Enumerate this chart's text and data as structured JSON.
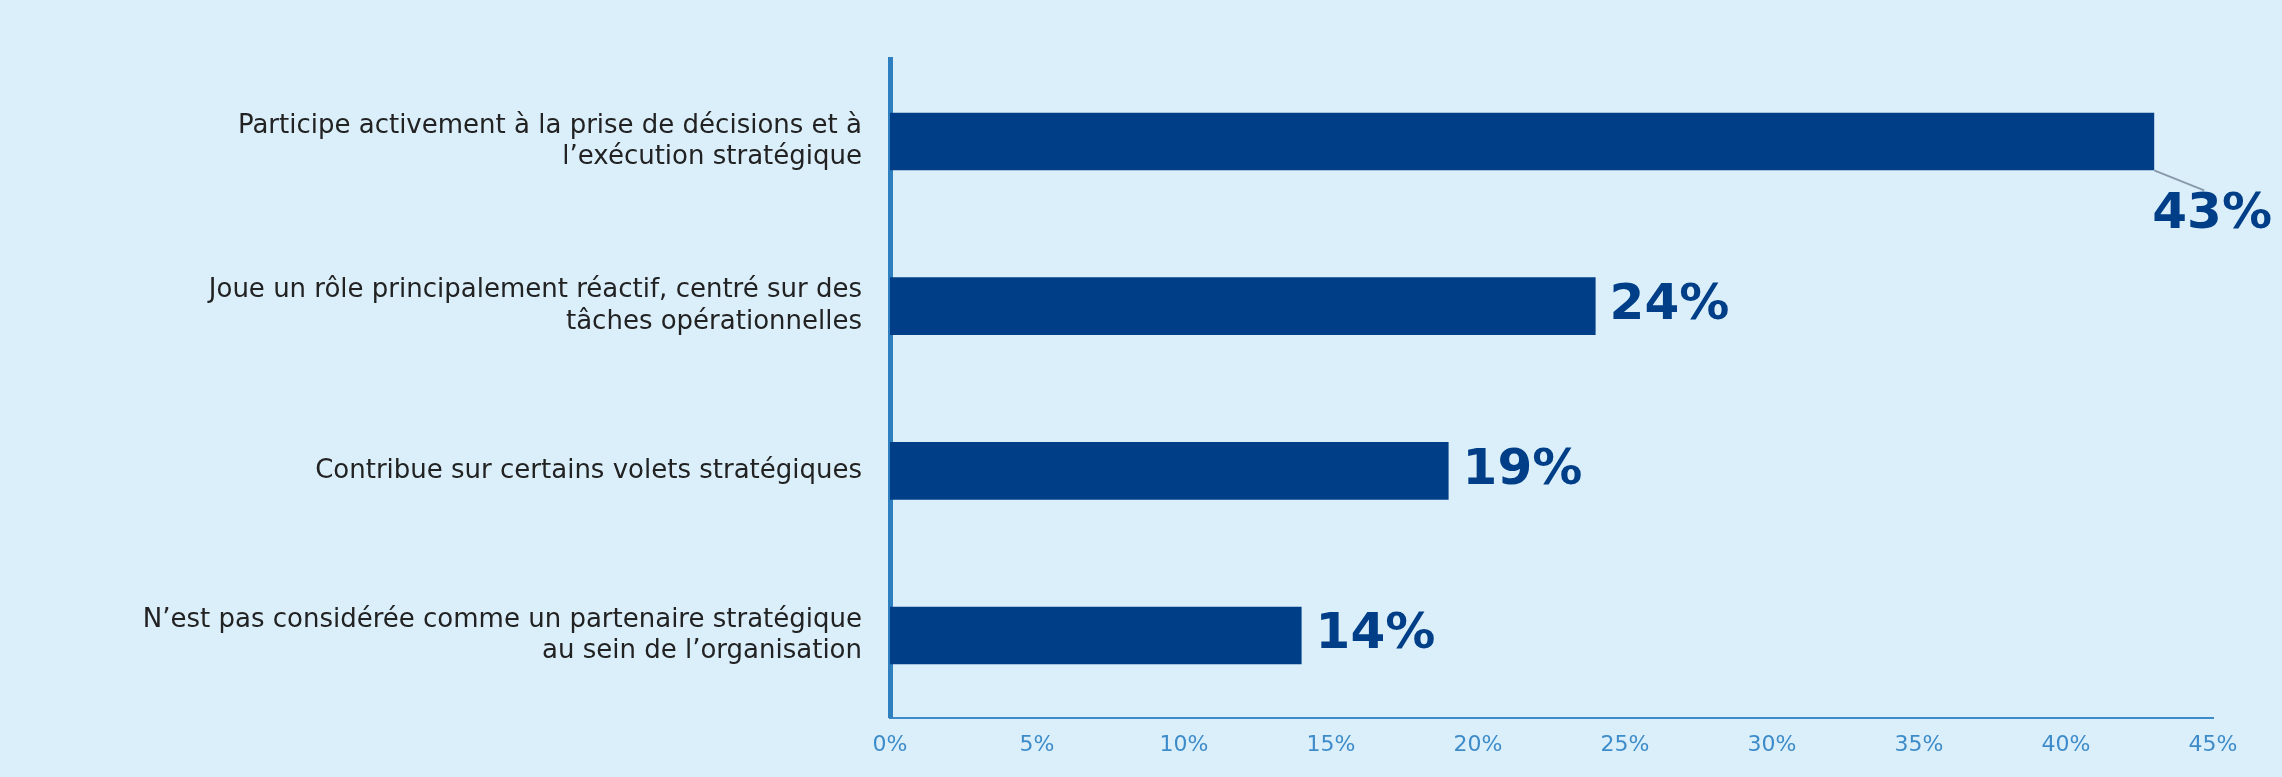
{
  "chart_data": {
    "type": "bar",
    "orientation": "horizontal",
    "categories": [
      "Participe activement à la prise de décisions et à l’exécution stratégique",
      "Joue un rôle principalement réactif, centré sur des tâches opérationnelles",
      "Contribue sur certains volets stratégiques",
      "N’est pas considérée comme un partenaire stratégique au sein de l’organisation"
    ],
    "values": [
      43,
      24,
      19,
      14
    ],
    "color": "#003f87",
    "xlim": [
      0,
      45
    ],
    "xticks": [
      {
        "value": 0,
        "label": "0%"
      },
      {
        "value": 5,
        "label": "5%"
      },
      {
        "value": 10,
        "label": "10%"
      },
      {
        "value": 15,
        "label": "15%"
      },
      {
        "value": 20,
        "label": "20%"
      },
      {
        "value": 25,
        "label": "25%"
      },
      {
        "value": 30,
        "label": "30%"
      },
      {
        "value": 35,
        "label": "35%"
      },
      {
        "value": 40,
        "label": "40%"
      },
      {
        "value": 45,
        "label": "45%"
      }
    ],
    "value_labels": [
      "43%",
      "24%",
      "19%",
      "14%"
    ],
    "grid": false,
    "legend": false
  }
}
